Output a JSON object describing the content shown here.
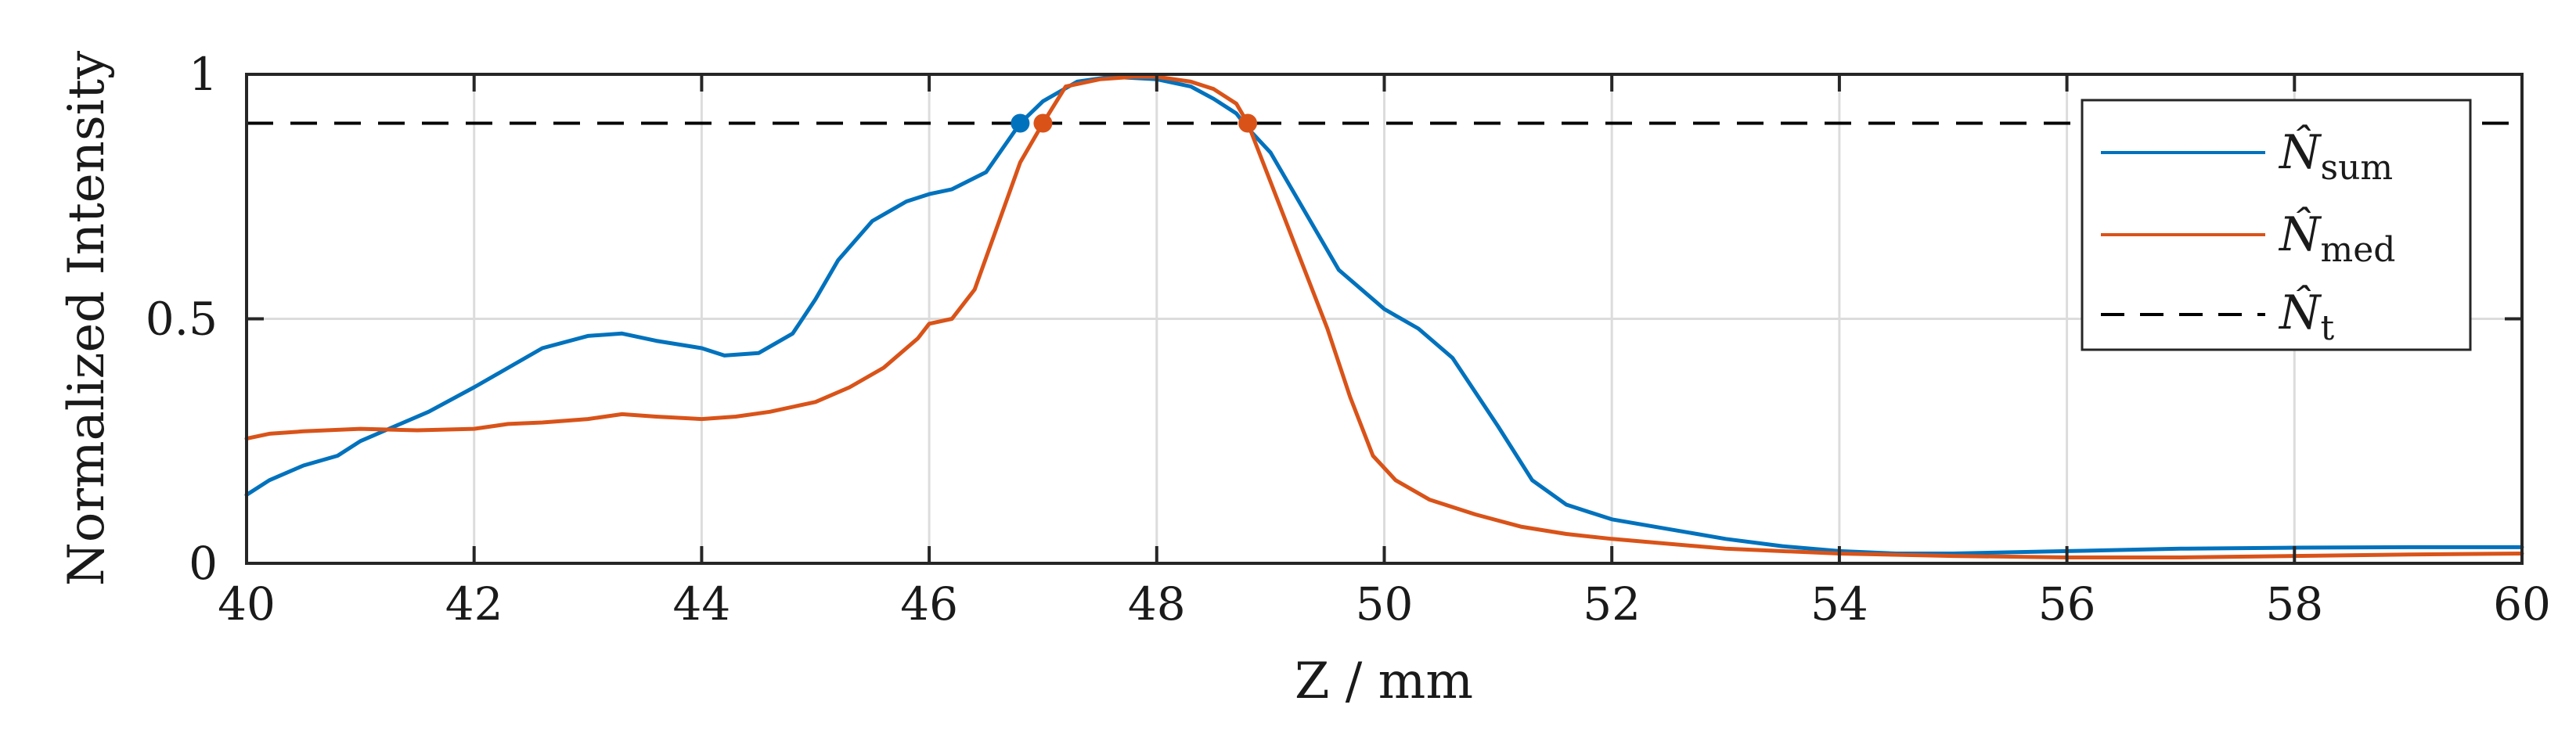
{
  "chart_data": {
    "type": "line",
    "title": "",
    "xlabel": "Z / mm",
    "ylabel": "Normalized Intensity",
    "xlim": [
      40,
      60
    ],
    "ylim": [
      0,
      1
    ],
    "x_ticks": [
      40,
      42,
      44,
      46,
      48,
      50,
      52,
      54,
      56,
      58,
      60
    ],
    "y_ticks": [
      0,
      0.5,
      1
    ],
    "y_tick_labels": [
      "0",
      "0.5",
      "1"
    ],
    "grid": true,
    "legend_position": "top-right",
    "legend": [
      {
        "symbol": "N̂",
        "subscript": "sum"
      },
      {
        "symbol": "N̂",
        "subscript": "med"
      },
      {
        "symbol": "N̂",
        "subscript": "t"
      }
    ],
    "threshold": {
      "name": "N_t",
      "value": 0.9,
      "color": "#000000",
      "dash": "dashed"
    },
    "series": [
      {
        "name": "N_sum",
        "color": "#0072BD",
        "x": [
          40.0,
          40.2,
          40.5,
          40.8,
          41.0,
          41.3,
          41.6,
          42.0,
          42.3,
          42.6,
          43.0,
          43.3,
          43.6,
          44.0,
          44.2,
          44.5,
          44.8,
          45.0,
          45.2,
          45.5,
          45.8,
          46.0,
          46.2,
          46.5,
          46.8,
          47.0,
          47.3,
          47.6,
          48.0,
          48.3,
          48.5,
          48.7,
          48.8,
          49.0,
          49.3,
          49.6,
          50.0,
          50.3,
          50.6,
          51.0,
          51.3,
          51.6,
          52.0,
          52.5,
          53.0,
          53.5,
          54.0,
          54.5,
          55.0,
          56.0,
          57.0,
          58.0,
          59.0,
          60.0
        ],
        "values": [
          0.14,
          0.17,
          0.2,
          0.22,
          0.25,
          0.28,
          0.31,
          0.36,
          0.4,
          0.44,
          0.465,
          0.47,
          0.455,
          0.44,
          0.425,
          0.43,
          0.47,
          0.54,
          0.62,
          0.7,
          0.74,
          0.755,
          0.765,
          0.8,
          0.9,
          0.945,
          0.985,
          0.995,
          0.99,
          0.975,
          0.95,
          0.92,
          0.89,
          0.84,
          0.72,
          0.6,
          0.52,
          0.48,
          0.42,
          0.28,
          0.17,
          0.12,
          0.09,
          0.07,
          0.05,
          0.035,
          0.025,
          0.02,
          0.02,
          0.025,
          0.03,
          0.032,
          0.033,
          0.033
        ]
      },
      {
        "name": "N_med",
        "color": "#D95319",
        "x": [
          40.0,
          40.2,
          40.5,
          41.0,
          41.5,
          42.0,
          42.3,
          42.6,
          43.0,
          43.3,
          43.6,
          44.0,
          44.3,
          44.6,
          45.0,
          45.3,
          45.6,
          45.9,
          46.0,
          46.2,
          46.4,
          46.6,
          46.8,
          47.0,
          47.2,
          47.5,
          47.8,
          48.0,
          48.3,
          48.5,
          48.7,
          48.8,
          49.0,
          49.2,
          49.5,
          49.7,
          49.9,
          50.1,
          50.4,
          50.8,
          51.2,
          51.6,
          52.0,
          53.0,
          54.0,
          55.0,
          56.0,
          57.0,
          58.0,
          59.0,
          60.0
        ],
        "values": [
          0.255,
          0.265,
          0.27,
          0.275,
          0.272,
          0.275,
          0.285,
          0.288,
          0.295,
          0.305,
          0.3,
          0.295,
          0.3,
          0.31,
          0.33,
          0.36,
          0.4,
          0.46,
          0.49,
          0.5,
          0.56,
          0.69,
          0.82,
          0.9,
          0.975,
          0.99,
          0.995,
          0.995,
          0.985,
          0.97,
          0.94,
          0.9,
          0.78,
          0.66,
          0.48,
          0.34,
          0.22,
          0.17,
          0.13,
          0.1,
          0.075,
          0.06,
          0.05,
          0.03,
          0.02,
          0.015,
          0.012,
          0.012,
          0.015,
          0.018,
          0.02
        ]
      }
    ],
    "markers": [
      {
        "series": "N_sum",
        "x": 46.8,
        "y": 0.9,
        "color": "#0072BD"
      },
      {
        "series": "N_med",
        "x": 47.0,
        "y": 0.9,
        "color": "#D95319"
      },
      {
        "series": "N_med",
        "x": 48.8,
        "y": 0.9,
        "color": "#D95319"
      }
    ]
  }
}
